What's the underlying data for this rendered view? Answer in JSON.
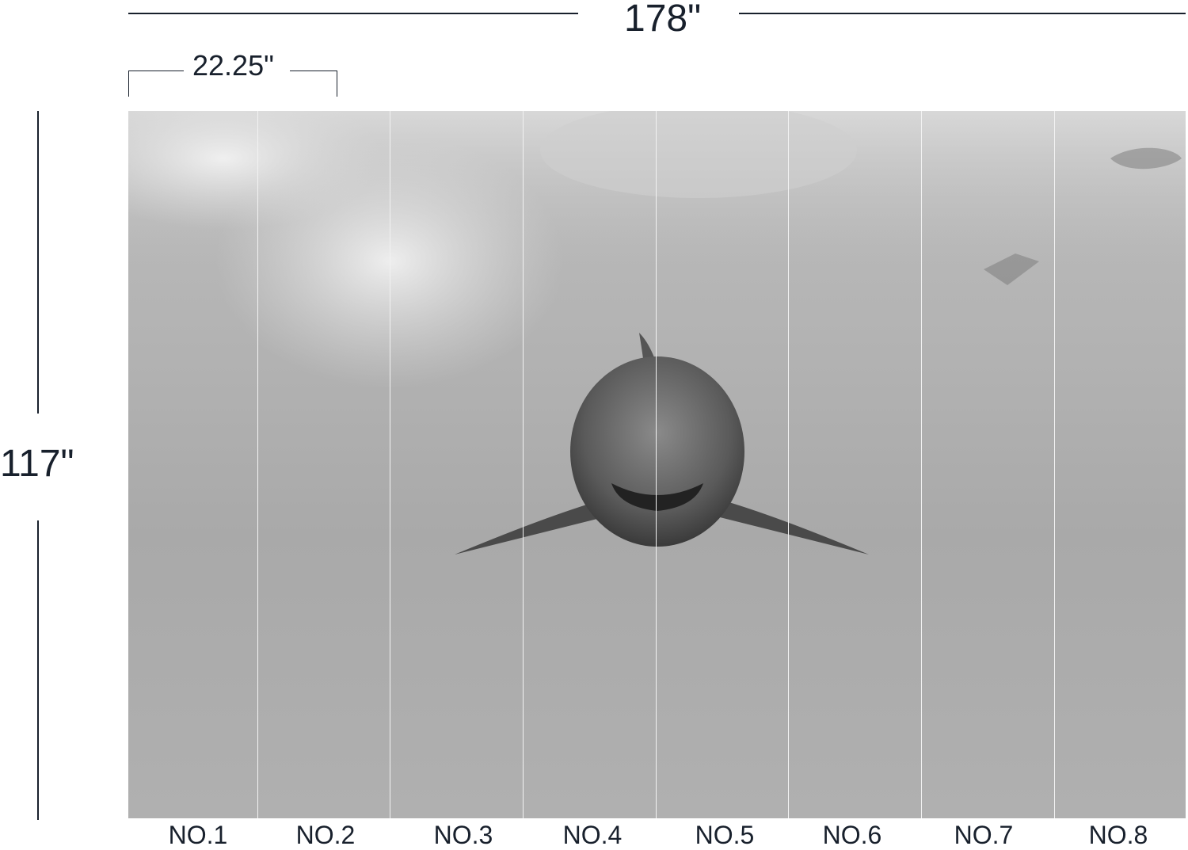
{
  "dimensions": {
    "total_width": "178\"",
    "panel_width": "22.25\"",
    "height": "117\""
  },
  "panels": [
    "NO.1",
    "NO.2",
    "NO.3",
    "NO.4",
    "NO.5",
    "NO.6",
    "NO.7",
    "NO.8"
  ],
  "colors": {
    "text": "#18202c",
    "divider": "#f2f2f2"
  }
}
